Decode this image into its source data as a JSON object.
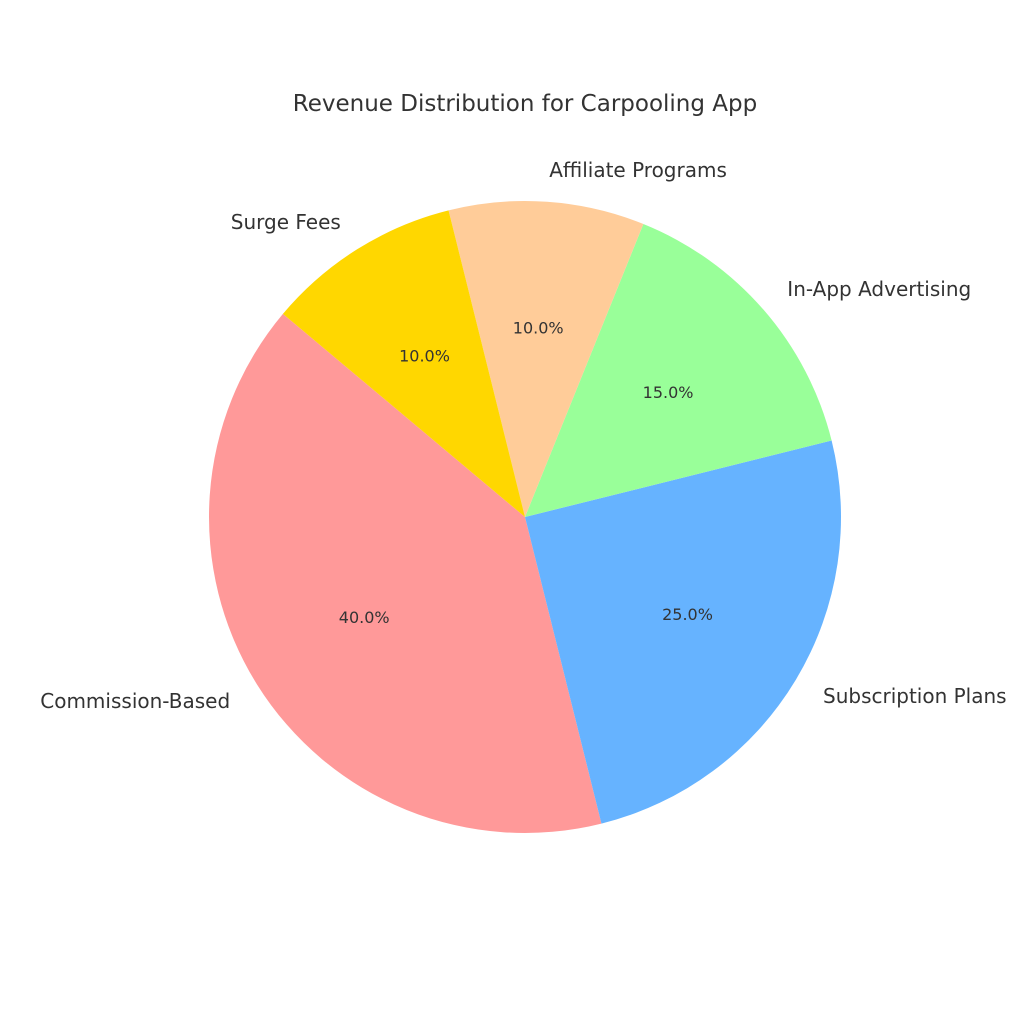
{
  "chart_data": {
    "type": "pie",
    "title": "Revenue Distribution for Carpooling App",
    "categories": [
      "Commission-Based",
      "Subscription Plans",
      "In-App Advertising",
      "Affiliate Programs",
      "Surge Fees"
    ],
    "values": [
      40,
      25,
      15,
      10,
      10
    ],
    "percent_labels": [
      "40.0%",
      "25.0%",
      "15.0%",
      "10.0%",
      "10.0%"
    ],
    "colors": [
      "#ff9999",
      "#66b3ff",
      "#99ff99",
      "#ffcc99",
      "#ffd700"
    ],
    "start_angle_deg": 140,
    "direction": "counterclockwise",
    "legend": "none"
  }
}
